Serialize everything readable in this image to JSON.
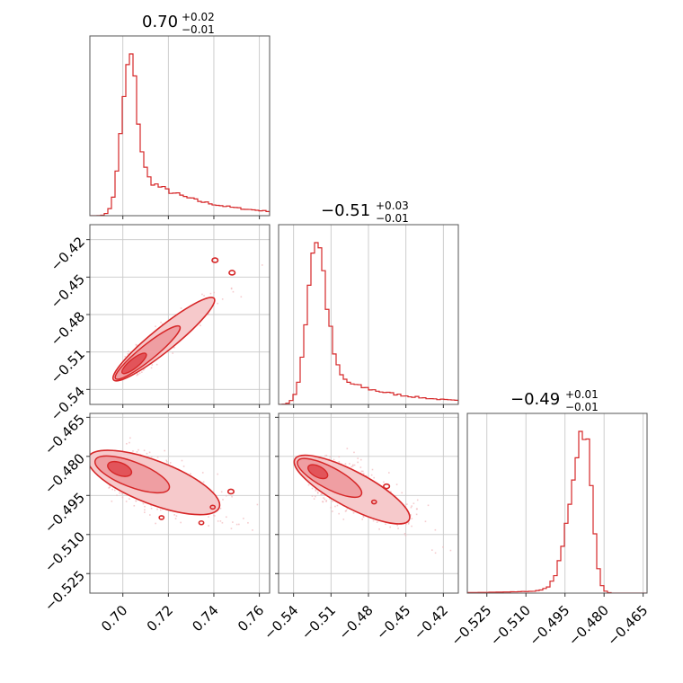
{
  "colors": {
    "accent": "#d62728",
    "fill_outer": "#f6c9cb",
    "fill_mid": "#ef9ea2",
    "fill_inner": "#e2545a",
    "scatter": "#f1b7ba"
  },
  "chart_data": [
    {
      "type": "histogram",
      "param": 0,
      "titles": {
        "median": "0.70",
        "plus": "+0.02",
        "minus": "−0.01"
      },
      "xlim": [
        0.6855,
        0.7645
      ],
      "peak": 0.703,
      "values": [
        0.7,
        0.72,
        0.74,
        0.76
      ],
      "tick_labels": [
        "0.70",
        "0.72",
        "0.74",
        "0.76"
      ]
    },
    {
      "type": "histogram",
      "param": 1,
      "titles": {
        "median": "−0.51",
        "plus": "+0.03",
        "minus": "−0.01"
      },
      "xlim": [
        -0.552,
        -0.408
      ],
      "peak": -0.522,
      "x_tick_values": [
        -0.54,
        -0.51,
        -0.48,
        -0.45,
        -0.42
      ],
      "x_tick_labels": [
        "−0.54",
        "−0.51",
        "−0.48",
        "−0.45",
        "−0.42"
      ]
    },
    {
      "type": "histogram",
      "param": 2,
      "titles": {
        "median": "−0.49",
        "plus": "+0.01",
        "minus": "−0.01"
      },
      "xlim": [
        -0.5325,
        -0.4635
      ],
      "peak": -0.4875,
      "x_tick_values": [
        -0.525,
        -0.51,
        -0.495,
        -0.48,
        -0.465
      ],
      "x_tick_labels": [
        "−0.525",
        "−0.510",
        "−0.495",
        "−0.480",
        "−0.465"
      ]
    },
    {
      "type": "contour",
      "params": [
        0,
        1
      ],
      "xlim": [
        0.6855,
        0.7645
      ],
      "ylim": [
        -0.552,
        -0.408
      ],
      "y_tick_values": [
        -0.42,
        -0.45,
        -0.48,
        -0.51,
        -0.54
      ],
      "y_tick_labels": [
        "−0.42",
        "−0.45",
        "−0.48",
        "−0.51",
        "−0.54"
      ]
    },
    {
      "type": "contour",
      "params": [
        0,
        2
      ],
      "xlim": [
        0.6855,
        0.7645
      ],
      "ylim": [
        -0.5325,
        -0.4635
      ],
      "y_tick_values": [
        -0.465,
        -0.48,
        -0.495,
        -0.51,
        -0.525
      ],
      "y_tick_labels": [
        "−0.465",
        "−0.480",
        "−0.495",
        "−0.510",
        "−0.525"
      ]
    },
    {
      "type": "contour",
      "params": [
        1,
        2
      ],
      "xlim": [
        -0.552,
        -0.408
      ],
      "ylim": [
        -0.5325,
        -0.4635
      ]
    }
  ]
}
